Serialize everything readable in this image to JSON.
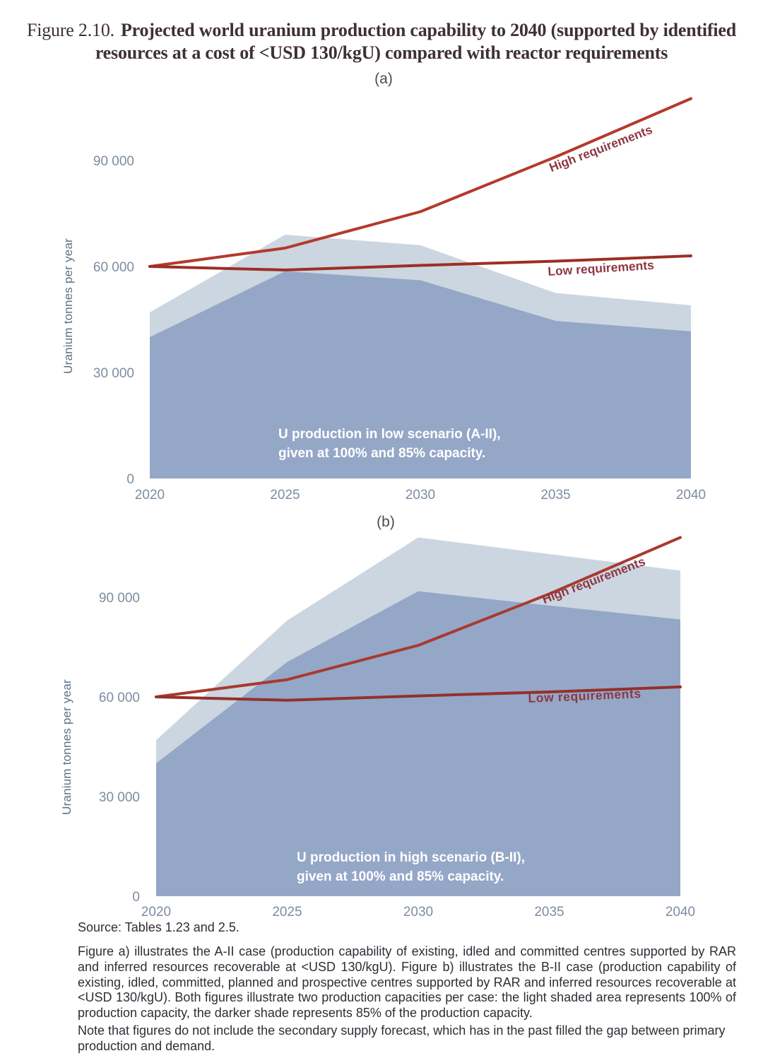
{
  "title": {
    "prefix": "Figure 2.10.",
    "line1": "Projected world uranium production capability to 2040 (supported by identified",
    "line2": "resources at a cost of <USD 130/kgU) compared with reactor requirements"
  },
  "chart_data": [
    {
      "id": "a",
      "type": "area",
      "panel_label": "(a)",
      "ylabel": "Uranium tonnes per year",
      "x": [
        2020,
        2025,
        2030,
        2035,
        2040
      ],
      "xtick_labels": [
        "2020",
        "2025",
        "2030",
        "2035",
        "2040"
      ],
      "ytick_values": [
        0,
        30000,
        60000,
        90000
      ],
      "ytick_labels": [
        "0",
        "30 000",
        "60 000",
        "90 000"
      ],
      "ylim": [
        0,
        110000
      ],
      "grid": "off",
      "series": [
        {
          "name": "Production capability at 100% capacity (A-II case)",
          "type": "area",
          "color": "#cbd6e0",
          "values": [
            47000,
            69000,
            66000,
            52500,
            49000
          ]
        },
        {
          "name": "Production capability at 85% capacity (A-II case)",
          "type": "area",
          "color": "#95a7c7",
          "values": [
            40000,
            58650,
            56100,
            44600,
            41650
          ]
        },
        {
          "name": "High requirements",
          "type": "line",
          "color": "#b43a2b",
          "values": [
            60000,
            65200,
            75500,
            91000,
            107500
          ]
        },
        {
          "name": "Low requirements",
          "type": "line",
          "color": "#9e2e25",
          "values": [
            60000,
            59000,
            60300,
            61500,
            63000
          ]
        }
      ],
      "annotation": "U production in low scenario (A-II),\ngiven at 100% and 85% capacity.",
      "labels": {
        "high": "High requirements",
        "low": "Low requirements"
      }
    },
    {
      "id": "b",
      "type": "area",
      "panel_label": "(b)",
      "ylabel": "Uranium tonnes per year",
      "x": [
        2020,
        2025,
        2030,
        2035,
        2040
      ],
      "xtick_labels": [
        "2020",
        "2025",
        "2030",
        "2035",
        "2040"
      ],
      "ytick_values": [
        0,
        30000,
        60000,
        90000
      ],
      "ytick_labels": [
        "0",
        "30 000",
        "60 000",
        "90 000"
      ],
      "ylim": [
        0,
        112000
      ],
      "grid": "off",
      "series": [
        {
          "name": "Production capability at 100% capacity (B-II case)",
          "type": "area",
          "color": "#cbd6e0",
          "values": [
            47000,
            83000,
            108000,
            103000,
            98000
          ]
        },
        {
          "name": "Production capability at 85% capacity (B-II case)",
          "type": "area",
          "color": "#95a7c7",
          "values": [
            40000,
            70500,
            91800,
            87500,
            83300
          ]
        },
        {
          "name": "High requirements",
          "type": "line",
          "color": "#a83a30",
          "values": [
            60000,
            65200,
            75500,
            91000,
            108000
          ]
        },
        {
          "name": "Low requirements",
          "type": "line",
          "color": "#94302c",
          "values": [
            60000,
            59000,
            60300,
            61500,
            63000
          ]
        }
      ],
      "annotation": "U production in high scenario (B-II),\ngiven at 100% and 85% capacity.",
      "labels": {
        "high": "High requirements",
        "low": "Low requirements"
      }
    }
  ],
  "footer": {
    "source": "Source: Tables 1.23 and 2.5.",
    "caption": "Figure a) illustrates the A-II case (production capability of existing, idled and committed centres supported by RAR and inferred resources recoverable at <USD 130/kgU). Figure b) illustrates the B-II case (production capability of existing, idled, committed, planned and prospective centres supported by RAR and inferred resources recoverable at <USD 130/kgU). Both figures illustrate two production capacities per case: the light shaded area represents 100% of production capacity, the darker shade represents 85% of the production capacity.",
    "note": "Note that figures do not include the secondary supply forecast, which has in the past filled the gap between primary production and demand."
  }
}
